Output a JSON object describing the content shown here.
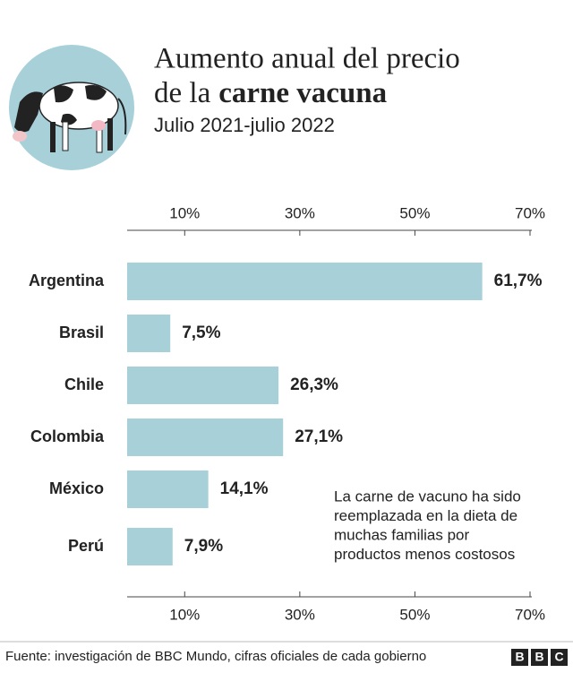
{
  "chart_data": {
    "type": "bar",
    "orientation": "horizontal",
    "title": {
      "line1": "Aumento anual del precio",
      "line2": "de la",
      "line2_bold": "carne vacuna"
    },
    "subtitle": "Julio 2021-julio 2022",
    "categories": [
      "Argentina",
      "Brasil",
      "Chile",
      "Colombia",
      "México",
      "Perú"
    ],
    "values": [
      61.7,
      7.5,
      26.3,
      27.1,
      14.1,
      7.9
    ],
    "value_labels": [
      "61,7%",
      "7,5%",
      "26,3%",
      "27,1%",
      "14,1%",
      "7,9%"
    ],
    "color": "#a7d0d9",
    "xlim": [
      0,
      70
    ],
    "xticks": [
      {
        "value": 10,
        "label": "10%"
      },
      {
        "value": 30,
        "label": "30%"
      },
      {
        "value": 50,
        "label": "50%"
      },
      {
        "value": 70,
        "label": "70%"
      }
    ],
    "annotation": [
      "La carne de vacuno ha sido",
      "reemplazada en la dieta de",
      "muchas familias por",
      "productos menos costosos"
    ],
    "source": "Fuente: investigación de BBC Mundo, cifras oficiales de cada gobierno",
    "logo": [
      "B",
      "B",
      "C"
    ]
  }
}
